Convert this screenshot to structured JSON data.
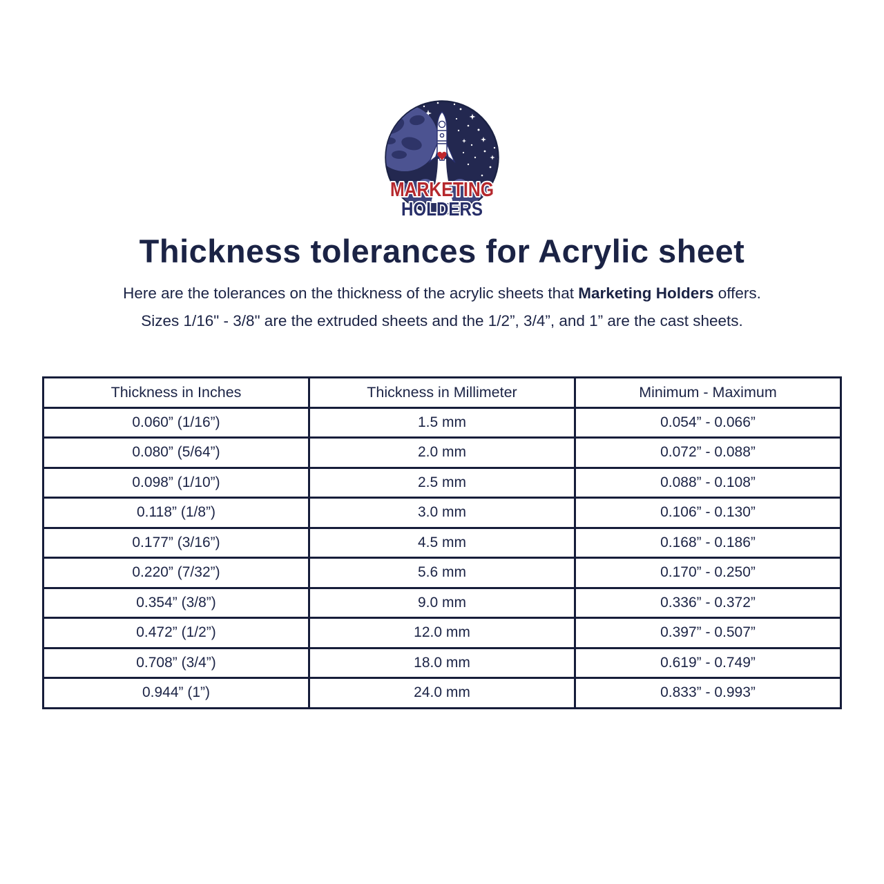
{
  "logo": {
    "word_top": "MARKETING",
    "word_bottom": "HOLDERS",
    "word_top_color": "#b5282d",
    "word_bottom_color": "#272e68",
    "space_bg_color": "#232850",
    "planet_color": "#4c5391",
    "cloud_color": "#3d447c"
  },
  "title": "Thickness tolerances for Acrylic sheet",
  "intro": {
    "line1_prefix": "Here are the tolerances on the thickness of the acrylic sheets that ",
    "brand": "Marketing Holders",
    "line1_suffix": " offers.",
    "line2": "Sizes 1/16\" - 3/8\" are the extruded sheets and the 1/2”, 3/4”, and 1” are the cast sheets."
  },
  "table": {
    "headers": [
      "Thickness in Inches",
      "Thickness in Millimeter",
      "Minimum - Maximum"
    ],
    "rows": [
      [
        "0.060” (1/16”)",
        "1.5 mm",
        "0.054” - 0.066”"
      ],
      [
        "0.080” (5/64”)",
        "2.0 mm",
        "0.072” - 0.088”"
      ],
      [
        "0.098” (1/10”)",
        "2.5 mm",
        "0.088” - 0.108”"
      ],
      [
        "0.118” (1/8”)",
        "3.0 mm",
        "0.106” - 0.130”"
      ],
      [
        "0.177” (3/16”)",
        "4.5 mm",
        "0.168” - 0.186”"
      ],
      [
        "0.220” (7/32”)",
        "5.6 mm",
        "0.170” - 0.250”"
      ],
      [
        "0.354” (3/8”)",
        "9.0 mm",
        "0.336” - 0.372”"
      ],
      [
        "0.472” (1/2”)",
        "12.0 mm",
        "0.397” - 0.507”"
      ],
      [
        "0.708” (3/4”)",
        "18.0 mm",
        "0.619” - 0.749”"
      ],
      [
        "0.944” (1”)",
        "24.0 mm",
        "0.833” - 0.993”"
      ]
    ]
  },
  "colors": {
    "text_navy": "#1b2345",
    "border_navy": "#161d3a",
    "brand_red": "#b5282d"
  }
}
